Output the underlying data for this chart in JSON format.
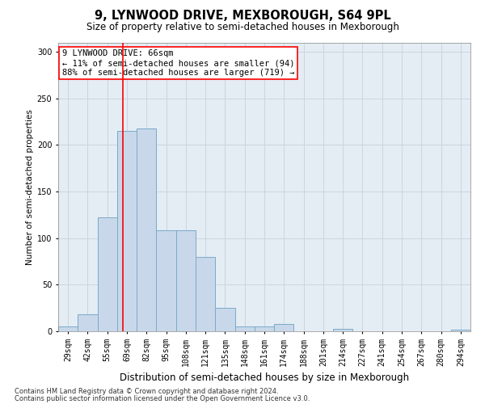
{
  "title": "9, LYNWOOD DRIVE, MEXBOROUGH, S64 9PL",
  "subtitle": "Size of property relative to semi-detached houses in Mexborough",
  "xlabel": "Distribution of semi-detached houses by size in Mexborough",
  "ylabel": "Number of semi-detached properties",
  "footnote1": "Contains HM Land Registry data © Crown copyright and database right 2024.",
  "footnote2": "Contains public sector information licensed under the Open Government Licence v3.0.",
  "annotation_title": "9 LYNWOOD DRIVE: 66sqm",
  "annotation_line1": "← 11% of semi-detached houses are smaller (94)",
  "annotation_line2": "88% of semi-detached houses are larger (719) →",
  "bar_color": "#c8d8ea",
  "bar_edge_color": "#7aaac8",
  "grid_color": "#ccd5de",
  "bg_color": "#e4ecf4",
  "categories": [
    "29sqm",
    "42sqm",
    "55sqm",
    "69sqm",
    "82sqm",
    "95sqm",
    "108sqm",
    "121sqm",
    "135sqm",
    "148sqm",
    "161sqm",
    "174sqm",
    "188sqm",
    "201sqm",
    "214sqm",
    "227sqm",
    "241sqm",
    "254sqm",
    "267sqm",
    "280sqm",
    "294sqm"
  ],
  "values": [
    5,
    18,
    122,
    215,
    218,
    108,
    108,
    80,
    25,
    5,
    5,
    8,
    0,
    0,
    3,
    0,
    0,
    0,
    0,
    0,
    2
  ],
  "red_line_x": 2.79,
  "ylim": [
    0,
    310
  ],
  "yticks": [
    0,
    50,
    100,
    150,
    200,
    250,
    300
  ],
  "title_fontsize": 10.5,
  "subtitle_fontsize": 8.5,
  "ylabel_fontsize": 7.5,
  "xlabel_fontsize": 8.5,
  "tick_fontsize": 7,
  "annotation_fontsize": 7.5,
  "footnote_fontsize": 6
}
